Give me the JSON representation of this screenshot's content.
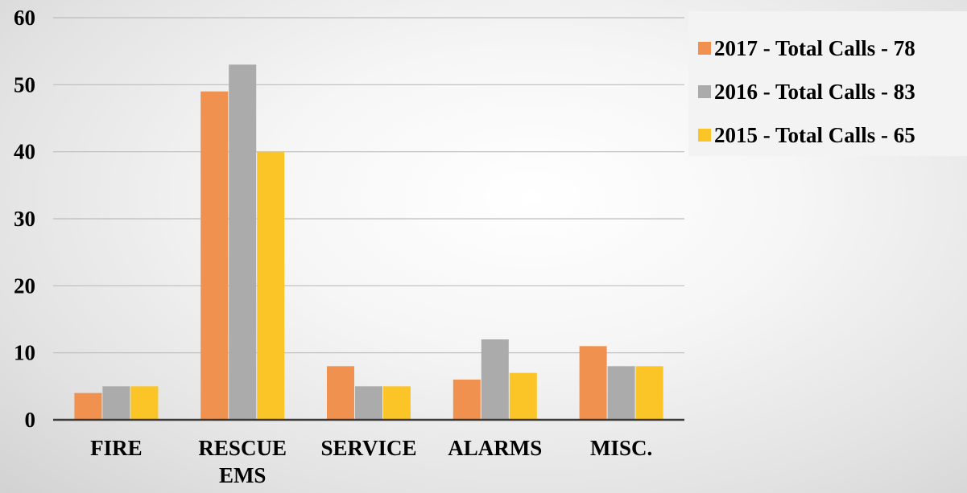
{
  "chart_data": {
    "type": "bar",
    "categories": [
      [
        "FIRE"
      ],
      [
        "RESCUE",
        "EMS"
      ],
      [
        "SERVICE"
      ],
      [
        "ALARMS"
      ],
      [
        "MISC."
      ]
    ],
    "series": [
      {
        "name": "2017 - Total Calls - 78",
        "color": "#F0914F",
        "values": [
          4,
          49,
          8,
          6,
          11
        ]
      },
      {
        "name": "2016 - Total Calls - 83",
        "color": "#ABABAB",
        "values": [
          5,
          53,
          5,
          12,
          8
        ]
      },
      {
        "name": "2015 - Total Calls - 65",
        "color": "#FCC527",
        "values": [
          5,
          40,
          5,
          7,
          8
        ]
      }
    ],
    "ylim": [
      0,
      60
    ],
    "yticks": [
      0,
      10,
      20,
      30,
      40,
      50,
      60
    ],
    "grid": true,
    "legend_position": "top-right",
    "title": "",
    "xlabel": "",
    "ylabel": ""
  }
}
